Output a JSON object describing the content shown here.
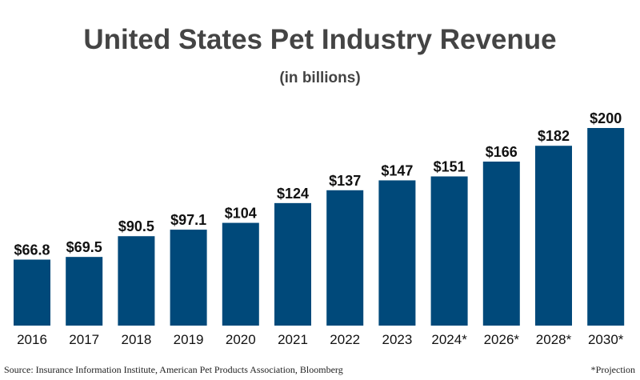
{
  "chart_data": {
    "type": "bar",
    "title": "United States Pet Industry Revenue",
    "subtitle": "(in billions)",
    "categories": [
      "2016",
      "2017",
      "2018",
      "2019",
      "2020",
      "2021",
      "2022",
      "2023",
      "2024*",
      "2026*",
      "2028*",
      "2030*"
    ],
    "values": [
      66.8,
      69.5,
      90.5,
      97.1,
      104,
      124,
      137,
      147,
      151,
      166,
      182,
      200
    ],
    "data_labels": [
      "$66.8",
      "$69.5",
      "$90.5",
      "$97.1",
      "$104",
      "$124",
      "$137",
      "$147",
      "$151",
      "$166",
      "$182",
      "$200"
    ],
    "ylim": [
      0,
      200
    ],
    "grid": false,
    "bar_color": "#00497a"
  },
  "footer": {
    "source": "Source: Insurance Information Institute, American Pet Products Association, Bloomberg",
    "note": "*Projection"
  }
}
